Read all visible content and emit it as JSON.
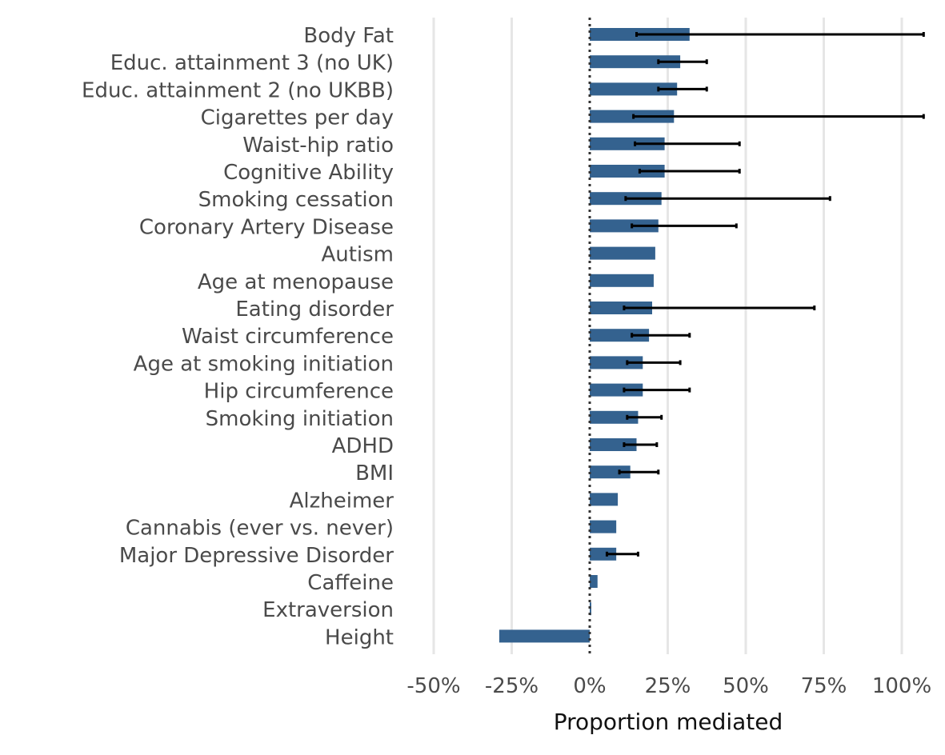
{
  "chart_data": {
    "type": "bar",
    "orientation": "horizontal",
    "xlabel": "Proportion mediated",
    "ylabel": "",
    "title": "",
    "xlim": [
      -0.5,
      1.05
    ],
    "x_ticks": [
      -0.5,
      -0.25,
      0,
      0.25,
      0.5,
      0.75,
      1.0
    ],
    "x_tick_labels": [
      "-50%",
      "-25%",
      "0%",
      "25%",
      "50%",
      "75%",
      "100%"
    ],
    "grid": "vertical-major",
    "reference_line": 0,
    "bar_color": "#34628f",
    "errorbar_color": "#000000",
    "categories": [
      "Body Fat",
      "Educ. attainment 3 (no UK)",
      "Educ. attainment 2 (no UKBB)",
      "Cigarettes per day",
      "Waist-hip ratio",
      "Cognitive Ability",
      "Smoking cessation",
      "Coronary Artery Disease",
      "Autism",
      "Age at menopause",
      "Eating disorder",
      "Waist circumference",
      "Age at smoking initiation",
      "Hip circumference",
      "Smoking initiation",
      "ADHD",
      "BMI",
      "Alzheimer",
      "Cannabis (ever vs. never)",
      "Major Depressive Disorder",
      "Caffeine",
      "Extraversion",
      "Height"
    ],
    "values": [
      0.32,
      0.29,
      0.28,
      0.27,
      0.24,
      0.24,
      0.23,
      0.22,
      0.21,
      0.205,
      0.2,
      0.19,
      0.17,
      0.17,
      0.155,
      0.15,
      0.13,
      0.09,
      0.085,
      0.085,
      0.025,
      0.005,
      -0.29
    ],
    "error_low": [
      0.15,
      0.22,
      0.22,
      0.14,
      0.145,
      0.16,
      0.115,
      0.135,
      null,
      null,
      0.11,
      0.135,
      0.12,
      0.11,
      0.12,
      0.11,
      0.095,
      null,
      null,
      0.055,
      null,
      null,
      null
    ],
    "error_high": [
      1.07,
      0.375,
      0.375,
      1.07,
      0.48,
      0.48,
      0.77,
      0.47,
      null,
      null,
      0.72,
      0.32,
      0.29,
      0.32,
      0.23,
      0.215,
      0.22,
      null,
      null,
      0.155,
      null,
      null,
      null
    ]
  }
}
